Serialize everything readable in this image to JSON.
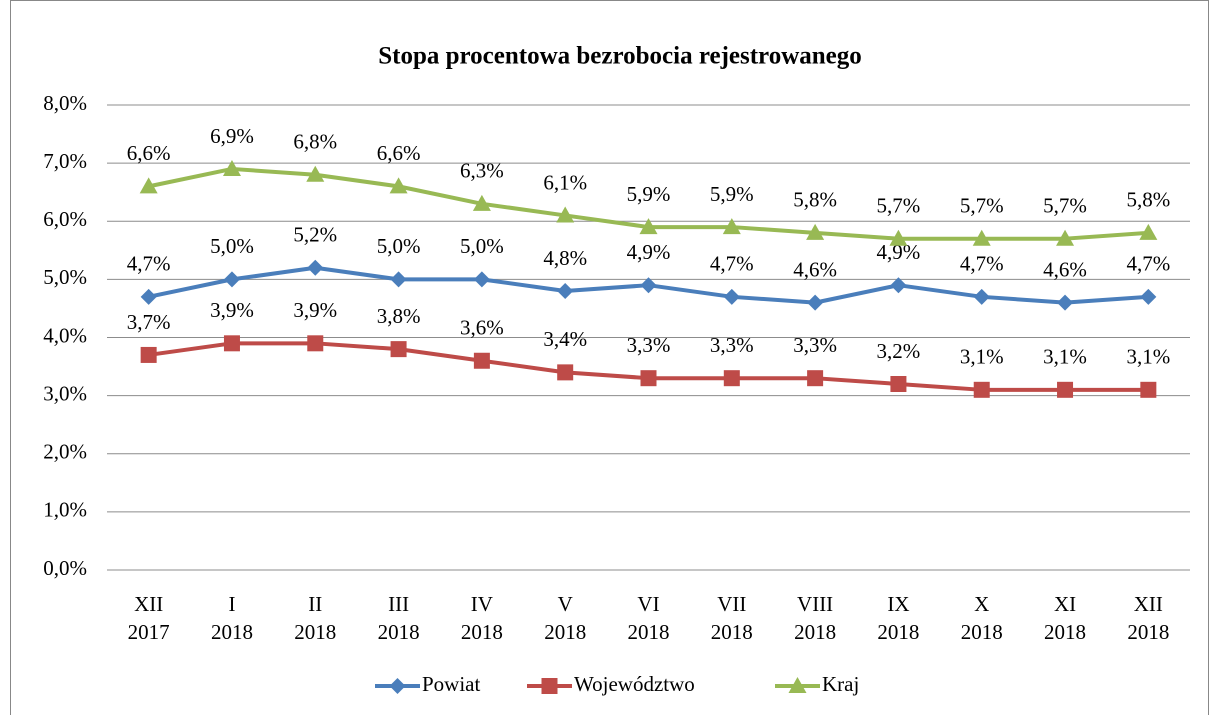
{
  "chart_data": {
    "type": "line",
    "title": "Stopa procentowa bezrobocia rejestrowanego",
    "categories": [
      [
        "XII",
        "2017"
      ],
      [
        "I",
        "2018"
      ],
      [
        "II",
        "2018"
      ],
      [
        "III",
        "2018"
      ],
      [
        "IV",
        "2018"
      ],
      [
        "V",
        "2018"
      ],
      [
        "VI",
        "2018"
      ],
      [
        "VII",
        "2018"
      ],
      [
        "VIII",
        "2018"
      ],
      [
        "IX",
        "2018"
      ],
      [
        "X",
        "2018"
      ],
      [
        "XI",
        "2018"
      ],
      [
        "XII",
        "2018"
      ]
    ],
    "series": [
      {
        "name": "Powiat",
        "color": "#4a7ebb",
        "marker": "diamond",
        "values": [
          4.7,
          5.0,
          5.2,
          5.0,
          5.0,
          4.8,
          4.9,
          4.7,
          4.6,
          4.9,
          4.7,
          4.6,
          4.7
        ],
        "value_labels": [
          "4,7%",
          "5,0%",
          "5,2%",
          "5,0%",
          "5,0%",
          "4,8%",
          "4,9%",
          "4,7%",
          "4,6%",
          "4,9%",
          "4,7%",
          "4,6%",
          "4,7%"
        ]
      },
      {
        "name": "Województwo",
        "color": "#be4b48",
        "marker": "square",
        "values": [
          3.7,
          3.9,
          3.9,
          3.8,
          3.6,
          3.4,
          3.3,
          3.3,
          3.3,
          3.2,
          3.1,
          3.1,
          3.1
        ],
        "value_labels": [
          "3,7%",
          "3,9%",
          "3,9%",
          "3,8%",
          "3,6%",
          "3,4%",
          "3,3%",
          "3,3%",
          "3,3%",
          "3,2%",
          "3,1%",
          "3,1%",
          "3,1%"
        ]
      },
      {
        "name": "Kraj",
        "color": "#98b954",
        "marker": "triangle",
        "values": [
          6.6,
          6.9,
          6.8,
          6.6,
          6.3,
          6.1,
          5.9,
          5.9,
          5.8,
          5.7,
          5.7,
          5.7,
          5.8
        ],
        "value_labels": [
          "6,6%",
          "6,9%",
          "6,8%",
          "6,6%",
          "6,3%",
          "6,1%",
          "5,9%",
          "5,9%",
          "5,8%",
          "5,7%",
          "5,7%",
          "5,7%",
          "5,8%"
        ]
      }
    ],
    "ylim": [
      0,
      8
    ],
    "yticks": [
      {
        "value": 0,
        "label": "0,0%"
      },
      {
        "value": 1,
        "label": "1,0%"
      },
      {
        "value": 2,
        "label": "2,0%"
      },
      {
        "value": 3,
        "label": "3,0%"
      },
      {
        "value": 4,
        "label": "4,0%"
      },
      {
        "value": 5,
        "label": "5,0%"
      },
      {
        "value": 6,
        "label": "6,0%"
      },
      {
        "value": 7,
        "label": "7,0%"
      },
      {
        "value": 8,
        "label": "8,0%"
      }
    ],
    "grid": true,
    "legend": "bottom"
  }
}
